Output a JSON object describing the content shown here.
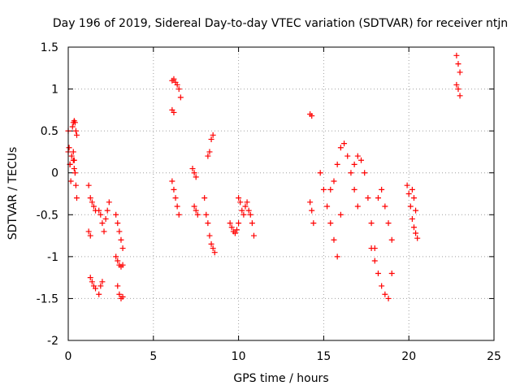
{
  "chart_data": {
    "type": "scatter",
    "title": "Day 196 of 2019, Sidereal Day-to-day VTEC variation (SDTVAR) for receiver ntjn",
    "xlabel": "GPS time / hours",
    "ylabel": "SDTVAR / TECUs",
    "xlim": [
      0,
      25
    ],
    "ylim": [
      -2,
      1.5
    ],
    "xticks": [
      0,
      5,
      10,
      15,
      20,
      25
    ],
    "yticks": [
      -2,
      -1.5,
      -1,
      -0.5,
      0,
      0.5,
      1,
      1.5
    ],
    "xtick_labels": [
      "0",
      "5",
      "10",
      "15",
      "20",
      "25"
    ],
    "ytick_labels": [
      "-2",
      "-1.5",
      "-1",
      "-0.5",
      "0",
      "0.5",
      "1",
      "1.5"
    ],
    "grid": true,
    "marker": "+",
    "color": "#ff0000",
    "segments": [
      {
        "x": [
          0.0,
          0.1,
          0.2,
          0.3,
          0.35
        ],
        "y": [
          0.25,
          0.1,
          0.2,
          0.15,
          0.05
        ]
      },
      {
        "x": [
          0.0,
          0.05,
          0.1,
          0.15
        ],
        "y": [
          0.5,
          0.3,
          0.1,
          -0.1
        ]
      },
      {
        "x": [
          0.25,
          0.3,
          0.35,
          0.4,
          0.45,
          0.5
        ],
        "y": [
          0.55,
          0.6,
          0.62,
          0.6,
          0.5,
          0.45
        ]
      },
      {
        "x": [
          0.3,
          0.35,
          0.4,
          0.45,
          0.5
        ],
        "y": [
          0.25,
          0.15,
          0.0,
          -0.15,
          -0.3
        ]
      },
      {
        "x": [
          1.2,
          1.3,
          1.4,
          1.5,
          1.6
        ],
        "y": [
          -0.15,
          -0.3,
          -0.35,
          -0.4,
          -0.45
        ]
      },
      {
        "x": [
          1.2,
          1.3
        ],
        "y": [
          -0.7,
          -0.75
        ]
      },
      {
        "x": [
          1.3,
          1.4,
          1.5,
          1.6
        ],
        "y": [
          -1.25,
          -1.3,
          -1.35,
          -1.38
        ]
      },
      {
        "x": [
          1.8,
          1.9,
          2.0,
          2.1,
          2.2,
          2.3,
          2.4
        ],
        "y": [
          -0.45,
          -0.5,
          -0.6,
          -0.7,
          -0.55,
          -0.45,
          -0.35
        ]
      },
      {
        "x": [
          1.8,
          1.9,
          2.0
        ],
        "y": [
          -1.45,
          -1.35,
          -1.3
        ]
      },
      {
        "x": [
          2.8,
          2.9,
          3.0,
          3.1,
          3.2
        ],
        "y": [
          -0.5,
          -0.6,
          -0.7,
          -0.8,
          -0.9
        ]
      },
      {
        "x": [
          2.8,
          2.9,
          3.0,
          3.1,
          3.2
        ],
        "y": [
          -1.0,
          -1.05,
          -1.1,
          -1.12,
          -1.1
        ]
      },
      {
        "x": [
          2.9,
          3.0,
          3.1,
          3.2
        ],
        "y": [
          -1.35,
          -1.45,
          -1.5,
          -1.48
        ]
      },
      {
        "x": [
          6.1,
          6.2,
          6.3,
          6.4,
          6.5,
          6.6
        ],
        "y": [
          1.1,
          1.12,
          1.08,
          1.05,
          1.0,
          0.9
        ]
      },
      {
        "x": [
          6.1,
          6.2
        ],
        "y": [
          0.75,
          0.72
        ]
      },
      {
        "x": [
          6.1,
          6.2,
          6.3,
          6.4,
          6.5
        ],
        "y": [
          -0.1,
          -0.2,
          -0.3,
          -0.4,
          -0.5
        ]
      },
      {
        "x": [
          7.3,
          7.4,
          7.5
        ],
        "y": [
          0.05,
          0.0,
          -0.05
        ]
      },
      {
        "x": [
          7.4,
          7.5,
          7.6
        ],
        "y": [
          -0.4,
          -0.45,
          -0.5
        ]
      },
      {
        "x": [
          8.0,
          8.1,
          8.2,
          8.3,
          8.4,
          8.5,
          8.6
        ],
        "y": [
          -0.3,
          -0.5,
          -0.6,
          -0.75,
          -0.85,
          -0.9,
          -0.95
        ]
      },
      {
        "x": [
          8.2,
          8.3,
          8.4,
          8.5
        ],
        "y": [
          0.2,
          0.25,
          0.4,
          0.45
        ]
      },
      {
        "x": [
          9.5,
          9.6,
          9.7,
          9.8,
          9.9,
          10.0
        ],
        "y": [
          -0.6,
          -0.65,
          -0.7,
          -0.72,
          -0.68,
          -0.6
        ]
      },
      {
        "x": [
          10.0,
          10.1,
          10.2,
          10.3,
          10.4,
          10.5,
          10.6,
          10.7,
          10.8,
          10.9
        ],
        "y": [
          -0.3,
          -0.35,
          -0.45,
          -0.5,
          -0.4,
          -0.35,
          -0.45,
          -0.5,
          -0.6,
          -0.75
        ]
      },
      {
        "x": [
          14.2,
          14.3
        ],
        "y": [
          0.7,
          0.68
        ]
      },
      {
        "x": [
          14.2,
          14.3,
          14.4
        ],
        "y": [
          -0.35,
          -0.45,
          -0.6
        ]
      },
      {
        "x": [
          14.8,
          15.0,
          15.2,
          15.4,
          15.6,
          15.8,
          16.0
        ],
        "y": [
          0.0,
          -0.2,
          -0.4,
          -0.6,
          -0.8,
          -1.0,
          -0.5
        ]
      },
      {
        "x": [
          15.4,
          15.6,
          15.8,
          16.0,
          16.2,
          16.4,
          16.6,
          16.8,
          17.0
        ],
        "y": [
          -0.2,
          -0.1,
          0.1,
          0.3,
          0.35,
          0.2,
          0.0,
          -0.2,
          -0.4
        ]
      },
      {
        "x": [
          16.8,
          17.0,
          17.2,
          17.4,
          17.6,
          17.8,
          18.0
        ],
        "y": [
          0.1,
          0.2,
          0.15,
          0.0,
          -0.3,
          -0.6,
          -0.9
        ]
      },
      {
        "x": [
          17.8,
          18.0,
          18.2,
          18.4,
          18.6,
          18.8,
          19.0
        ],
        "y": [
          -0.9,
          -1.05,
          -1.2,
          -1.35,
          -1.45,
          -1.5,
          -1.2
        ]
      },
      {
        "x": [
          18.2,
          18.4,
          18.6,
          18.8,
          19.0
        ],
        "y": [
          -0.3,
          -0.2,
          -0.4,
          -0.6,
          -0.8
        ]
      },
      {
        "x": [
          19.9,
          20.0,
          20.1,
          20.2,
          20.3,
          20.4,
          20.5
        ],
        "y": [
          -0.15,
          -0.25,
          -0.4,
          -0.55,
          -0.65,
          -0.72,
          -0.78
        ]
      },
      {
        "x": [
          20.2,
          20.3,
          20.4
        ],
        "y": [
          -0.2,
          -0.3,
          -0.45
        ]
      },
      {
        "x": [
          22.8,
          22.9,
          23.0
        ],
        "y": [
          1.4,
          1.3,
          1.2
        ]
      },
      {
        "x": [
          22.8,
          22.9,
          23.0
        ],
        "y": [
          1.05,
          1.0,
          0.92
        ]
      }
    ]
  }
}
